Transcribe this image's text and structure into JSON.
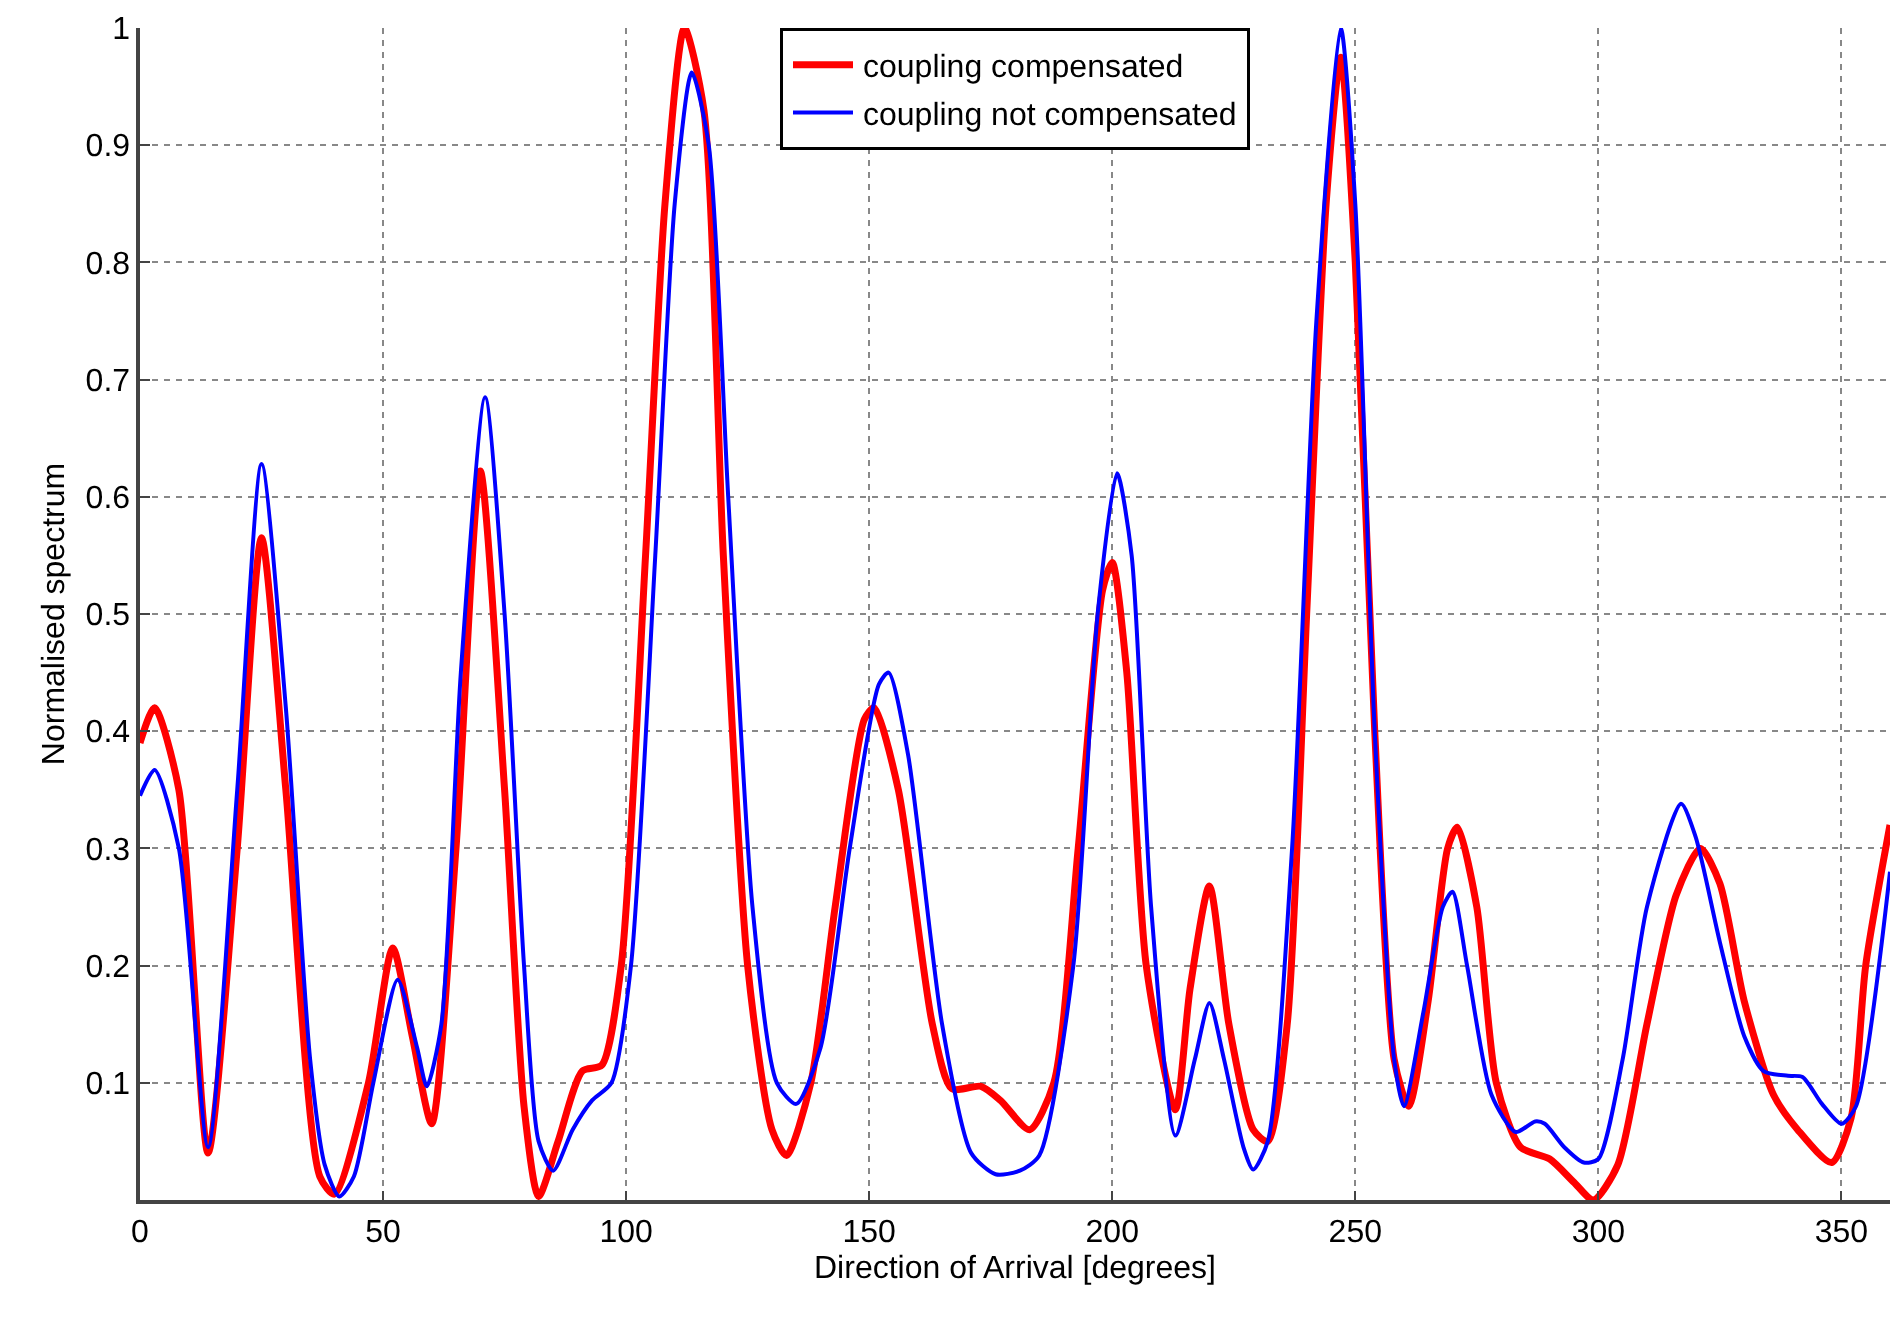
{
  "chart_data": {
    "type": "line",
    "xlabel": "Direction of Arrival [degrees]",
    "ylabel": "Normalised spectrum",
    "xlim": [
      0,
      360
    ],
    "xticks": [
      0,
      50,
      100,
      150,
      200,
      250,
      300,
      350
    ],
    "ylim": [
      0,
      1
    ],
    "yticks": [
      0.1,
      0.2,
      0.3,
      0.4,
      0.5,
      0.6,
      0.7,
      0.8,
      0.9,
      1
    ],
    "grid": true,
    "legend": "top",
    "marker": "none",
    "line_style": "solid",
    "series": [
      {
        "name": "coupling compensated",
        "color": "#ff0000",
        "x": [
          0,
          3,
          8,
          14,
          20,
          25,
          30,
          37,
          40,
          47,
          52,
          56,
          60,
          65,
          70,
          75,
          79,
          82,
          86,
          91,
          95,
          99,
          104,
          108,
          112,
          116,
          120,
          125,
          130,
          133,
          138,
          143,
          149,
          151,
          156,
          163,
          167,
          173,
          177,
          183,
          188,
          193,
          198,
          200,
          203,
          207,
          213,
          216,
          220,
          224,
          229,
          232,
          236,
          240,
          244,
          247,
          250,
          254,
          258,
          261,
          265,
          269,
          271,
          275,
          279,
          284,
          290,
          295,
          299,
          304,
          310,
          316,
          321,
          325,
          330,
          336,
          341,
          348,
          352,
          355,
          360
        ],
        "values": [
          0.39,
          0.42,
          0.35,
          0.04,
          0.3,
          0.565,
          0.35,
          0.02,
          0.005,
          0.1,
          0.215,
          0.14,
          0.065,
          0.3,
          0.622,
          0.35,
          0.08,
          0.003,
          0.05,
          0.11,
          0.115,
          0.2,
          0.55,
          0.85,
          1.0,
          0.93,
          0.55,
          0.2,
          0.06,
          0.038,
          0.1,
          0.25,
          0.41,
          0.42,
          0.35,
          0.15,
          0.095,
          0.097,
          0.085,
          0.06,
          0.1,
          0.3,
          0.52,
          0.544,
          0.45,
          0.2,
          0.077,
          0.18,
          0.268,
          0.15,
          0.06,
          0.05,
          0.15,
          0.5,
          0.85,
          0.975,
          0.8,
          0.4,
          0.12,
          0.08,
          0.17,
          0.3,
          0.318,
          0.25,
          0.1,
          0.045,
          0.035,
          0.015,
          0.0,
          0.03,
          0.15,
          0.26,
          0.3,
          0.27,
          0.17,
          0.09,
          0.06,
          0.032,
          0.07,
          0.2,
          0.32
        ]
      },
      {
        "name": "coupling not compensated",
        "color": "#0000ff",
        "x": [
          0,
          3,
          8,
          14,
          20,
          25,
          30,
          35,
          38,
          41,
          44,
          48,
          53,
          57,
          59,
          62,
          66,
          71,
          75,
          79,
          82,
          85,
          89,
          93,
          97,
          101,
          106,
          110,
          113.5,
          117,
          121,
          126,
          131,
          135,
          140,
          146,
          152,
          154,
          158,
          165,
          171,
          176,
          181,
          185,
          192,
          197,
          201,
          204,
          208,
          213,
          217,
          220,
          223,
          227,
          229,
          232,
          237,
          242,
          247,
          250,
          254,
          258,
          260,
          264,
          268,
          270,
          273,
          278,
          283,
          287,
          289,
          293,
          297,
          300,
          305,
          310,
          317,
          320,
          325,
          330,
          334,
          339,
          342,
          346,
          350,
          353,
          360
        ],
        "values": [
          0.345,
          0.367,
          0.3,
          0.045,
          0.35,
          0.628,
          0.42,
          0.12,
          0.03,
          0.003,
          0.02,
          0.1,
          0.188,
          0.13,
          0.097,
          0.15,
          0.45,
          0.685,
          0.5,
          0.2,
          0.05,
          0.025,
          0.06,
          0.085,
          0.1,
          0.2,
          0.55,
          0.85,
          0.962,
          0.9,
          0.6,
          0.25,
          0.1,
          0.082,
          0.13,
          0.3,
          0.44,
          0.45,
          0.38,
          0.15,
          0.04,
          0.022,
          0.025,
          0.038,
          0.2,
          0.5,
          0.62,
          0.55,
          0.25,
          0.055,
          0.12,
          0.168,
          0.12,
          0.045,
          0.026,
          0.05,
          0.3,
          0.75,
          1.0,
          0.85,
          0.4,
          0.12,
          0.08,
          0.16,
          0.25,
          0.263,
          0.2,
          0.09,
          0.058,
          0.067,
          0.065,
          0.045,
          0.032,
          0.035,
          0.12,
          0.25,
          0.338,
          0.31,
          0.22,
          0.14,
          0.11,
          0.106,
          0.105,
          0.082,
          0.065,
          0.08,
          0.28
        ]
      }
    ]
  }
}
